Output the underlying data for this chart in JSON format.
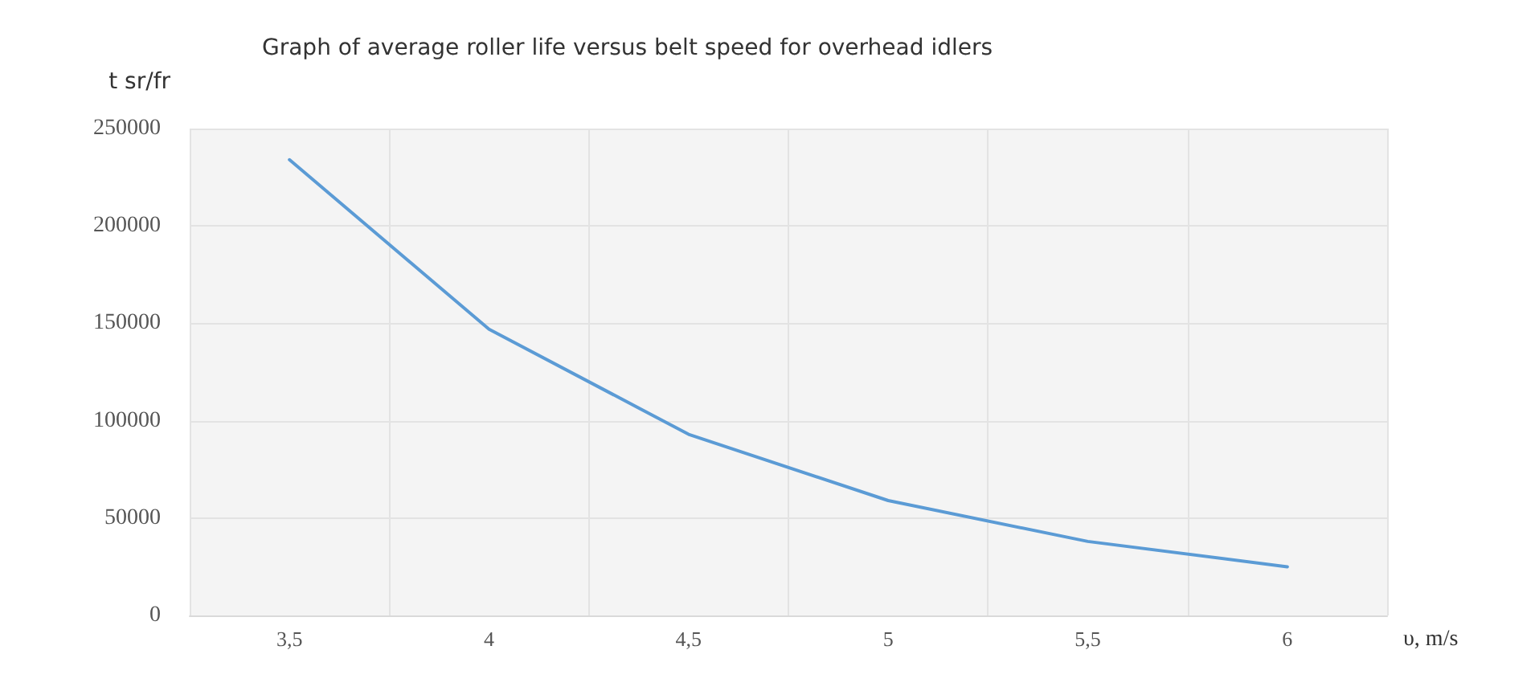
{
  "chart_data": {
    "type": "line",
    "title": "Graph of average roller life versus belt speed for overhead idlers",
    "ylabel": "t sr/fr",
    "xlabel": "υ, m/s",
    "categories": [
      "3,5",
      "4",
      "4,5",
      "5",
      "5,5",
      "6"
    ],
    "series": [
      {
        "color": "#5b9bd5",
        "values": [
          234000,
          147000,
          93000,
          59000,
          38000,
          25000
        ]
      }
    ],
    "ylim": [
      0,
      250000
    ],
    "yticks": [
      0,
      50000,
      100000,
      150000,
      200000,
      250000
    ],
    "grid": true,
    "marker": "none",
    "line_style": "solid"
  }
}
